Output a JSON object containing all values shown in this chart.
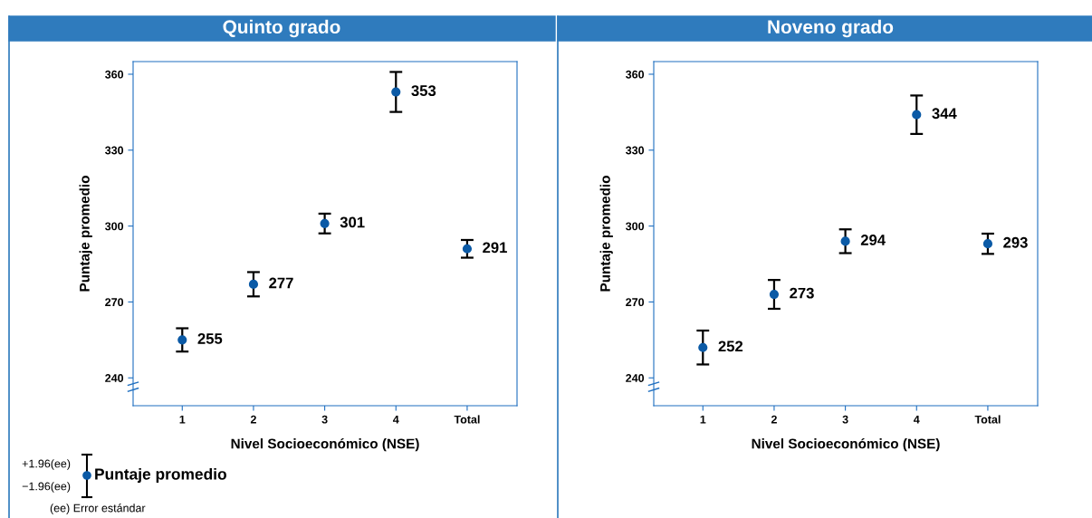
{
  "chart_data": [
    {
      "type": "scatter",
      "title": "Quinto grado",
      "xlabel": "Nivel Socioeconómico (NSE)",
      "ylabel": "Puntaje promedio",
      "categories": [
        "1",
        "2",
        "3",
        "4",
        "Total"
      ],
      "series": [
        {
          "color": "#0b5aa6",
          "values": [
            255,
            277,
            301,
            353,
            291
          ],
          "errors": [
            4.6,
            4.8,
            3.9,
            7.9,
            3.5
          ]
        }
      ],
      "ylim": [
        229,
        365
      ],
      "yticks": [
        240,
        270,
        300,
        330,
        360
      ],
      "data_labels": true,
      "grid": false,
      "legend": false,
      "marker": "circle",
      "annotations": [
        "+1.96(ee)",
        "−1.96(ee)",
        "Puntaje promedio",
        "(ee) Error estándar"
      ]
    },
    {
      "type": "scatter",
      "title": "Noveno grado",
      "xlabel": "Nivel Socioeconómico (NSE)",
      "ylabel": "Puntaje promedio",
      "categories": [
        "1",
        "2",
        "3",
        "4",
        "Total"
      ],
      "series": [
        {
          "color": "#0b5aa6",
          "values": [
            252,
            273,
            294,
            344,
            293
          ],
          "errors": [
            6.7,
            5.7,
            4.7,
            7.6,
            4.0
          ]
        }
      ],
      "ylim": [
        229,
        365
      ],
      "yticks": [
        240,
        270,
        300,
        330,
        360
      ],
      "data_labels": true,
      "grid": false,
      "legend": false,
      "marker": "circle"
    }
  ]
}
